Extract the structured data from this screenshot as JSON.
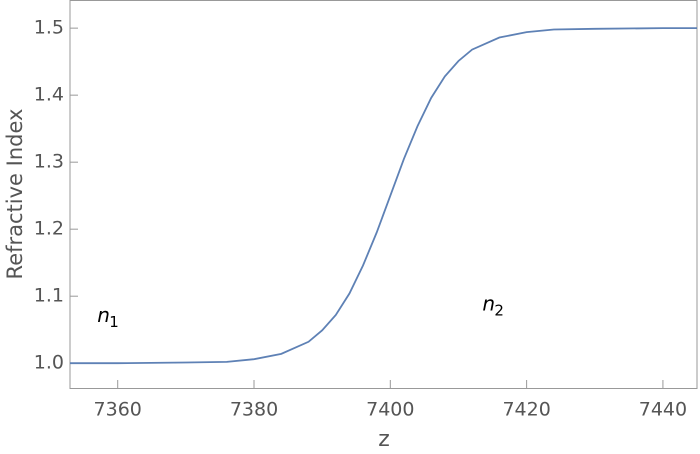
{
  "chart_data": {
    "type": "line",
    "xlabel": "z",
    "ylabel": "Refractive Index",
    "x": [
      7353,
      7360,
      7370,
      7376,
      7380,
      7384,
      7388,
      7390,
      7392,
      7394,
      7396,
      7398,
      7400,
      7402,
      7404,
      7406,
      7408,
      7410,
      7412,
      7416,
      7420,
      7424,
      7430,
      7440,
      7445
    ],
    "series": [
      {
        "color": "#5e81b5",
        "values": [
          1.0,
          1.0,
          1.001,
          1.002,
          1.006,
          1.014,
          1.032,
          1.049,
          1.072,
          1.104,
          1.146,
          1.195,
          1.25,
          1.305,
          1.354,
          1.396,
          1.428,
          1.451,
          1.468,
          1.486,
          1.494,
          1.498,
          1.499,
          1.5,
          1.5
        ]
      }
    ],
    "xlim": [
      7353,
      7445
    ],
    "ylim": [
      0.963,
      1.542
    ],
    "xticks": [
      7360,
      7380,
      7400,
      7420,
      7440
    ],
    "yticks": [
      {
        "value": 1,
        "label": "1.0"
      },
      1.1,
      1.2,
      1.3,
      1.4,
      1.5
    ],
    "annotations": [
      {
        "text": "n",
        "sub": "1",
        "x": 7357,
        "y": 1.07
      },
      {
        "text": "n",
        "sub": "2",
        "x": 7413.5,
        "y": 1.087
      }
    ]
  }
}
